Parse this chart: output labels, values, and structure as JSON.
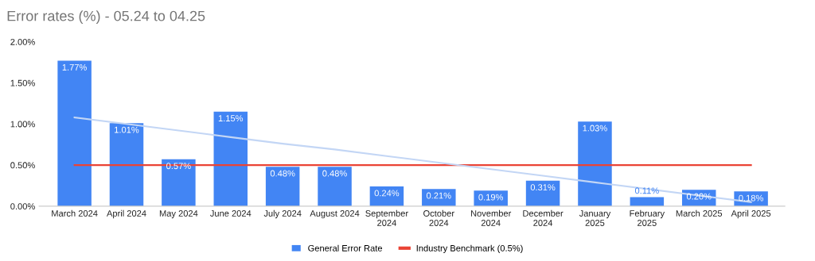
{
  "chart_data": {
    "type": "bar",
    "title": "Error rates (%) - 05.24 to 04.25",
    "categories": [
      "March 2024",
      "April 2024",
      "May 2024",
      "June 2024",
      "July 2024",
      "August 2024",
      "September\n2024",
      "October\n2024",
      "November\n2024",
      "December\n2024",
      "January\n2025",
      "February\n2025",
      "March 2025",
      "April 2025"
    ],
    "series": [
      {
        "name": "General Error Rate",
        "color": "#4285f4",
        "values": [
          1.77,
          1.01,
          0.57,
          1.15,
          0.48,
          0.48,
          0.24,
          0.21,
          0.19,
          0.31,
          1.03,
          0.11,
          0.2,
          0.18
        ],
        "value_labels": [
          "1.77%",
          "1.01%",
          "0.57%",
          "1.15%",
          "0.48%",
          "0.48%",
          "0.24%",
          "0.21%",
          "0.19%",
          "0.31%",
          "1.03%",
          "0.11%",
          "0.20%",
          "0.18%"
        ]
      },
      {
        "name": "Industry Benchmark (0.5%)",
        "type": "line",
        "color": "#ea4335",
        "values": [
          0.5,
          0.5,
          0.5,
          0.5,
          0.5,
          0.5,
          0.5,
          0.5,
          0.5,
          0.5,
          0.5,
          0.5,
          0.5,
          0.5
        ]
      },
      {
        "type": "line",
        "color": "#c3d6f5",
        "values": [
          1.08,
          1.0,
          0.92,
          0.84,
          0.76,
          0.69,
          0.61,
          0.53,
          0.45,
          0.37,
          0.29,
          0.21,
          0.13,
          0.05
        ]
      }
    ],
    "ylim": [
      0,
      2.0
    ],
    "yticks": [
      {
        "value": 0,
        "label": "0.00%"
      },
      {
        "value": 0.5,
        "label": "0.50%"
      },
      {
        "value": 1.0,
        "label": "1.00%"
      },
      {
        "value": 1.5,
        "label": "1.50%"
      },
      {
        "value": 2.0,
        "label": "2.00%"
      }
    ],
    "grid": false,
    "legend": "bottom"
  }
}
